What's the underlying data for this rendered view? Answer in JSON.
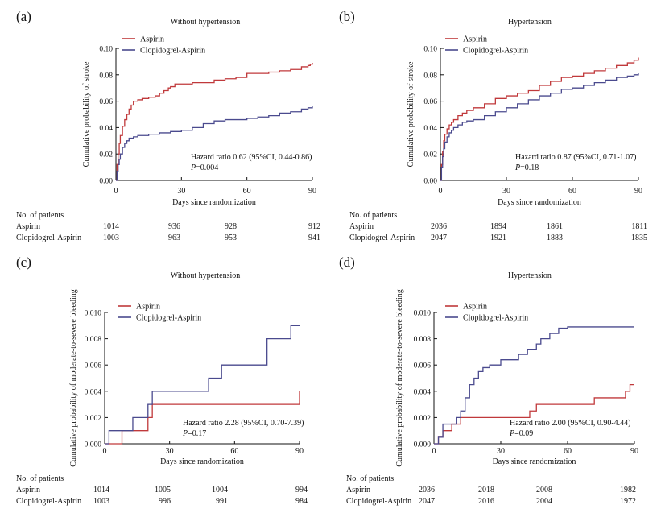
{
  "chart_data": [
    {
      "type": "line",
      "panel_label": "(a)",
      "title": "Without hypertension",
      "xlabel": "Days since randomization",
      "ylabel": "Cumulative probability of stroke",
      "xlim": [
        0,
        90
      ],
      "ylim": [
        0,
        0.1
      ],
      "x_ticks": [
        "0",
        "30",
        "60",
        "90"
      ],
      "y_ticks": [
        "0.00",
        "0.02",
        "0.04",
        "0.06",
        "0.08",
        "0.10"
      ],
      "legend": [
        "Aspirin",
        "Clopidogrel-Aspirin"
      ],
      "annotation": {
        "hr": "Hazard ratio 0.62 (95%CI, 0.44-0.86)",
        "p_italic": "P",
        "p_rest": "=0.004"
      },
      "series": [
        {
          "name": "Aspirin",
          "color": "#c0393b",
          "x": [
            0,
            0.5,
            1,
            1.5,
            2,
            3,
            4,
            5,
            6,
            7,
            8,
            10,
            12,
            15,
            18,
            20,
            22,
            24,
            25,
            27,
            30,
            35,
            40,
            45,
            50,
            55,
            60,
            65,
            70,
            75,
            80,
            85,
            88,
            89,
            90
          ],
          "y": [
            0,
            0.012,
            0.02,
            0.028,
            0.034,
            0.041,
            0.046,
            0.05,
            0.054,
            0.057,
            0.06,
            0.061,
            0.062,
            0.063,
            0.064,
            0.066,
            0.068,
            0.07,
            0.071,
            0.073,
            0.073,
            0.074,
            0.074,
            0.076,
            0.077,
            0.078,
            0.081,
            0.081,
            0.082,
            0.083,
            0.084,
            0.086,
            0.087,
            0.088,
            0.089
          ]
        },
        {
          "name": "Clopidogrel-Aspirin",
          "color": "#4a4a8e",
          "x": [
            0,
            0.5,
            1,
            1.5,
            2,
            3,
            4,
            5,
            6,
            8,
            10,
            15,
            20,
            25,
            30,
            35,
            40,
            45,
            50,
            55,
            60,
            65,
            70,
            75,
            80,
            85,
            88,
            90
          ],
          "y": [
            0,
            0.007,
            0.012,
            0.016,
            0.02,
            0.025,
            0.028,
            0.03,
            0.032,
            0.033,
            0.034,
            0.035,
            0.036,
            0.037,
            0.038,
            0.04,
            0.043,
            0.045,
            0.046,
            0.046,
            0.047,
            0.048,
            0.049,
            0.051,
            0.052,
            0.054,
            0.055,
            0.056
          ]
        }
      ],
      "at_risk": {
        "title": "No. of patients",
        "rows": [
          {
            "label": "Aspirin",
            "values": [
              "1014",
              "936",
              "928",
              "912"
            ]
          },
          {
            "label": "Clopidogrel-Aspirin",
            "values": [
              "1003",
              "963",
              "953",
              "941"
            ]
          }
        ]
      }
    },
    {
      "type": "line",
      "panel_label": "(b)",
      "title": "Hypertension",
      "xlabel": "Days since randomization",
      "ylabel": "Cumulative probability of stroke",
      "xlim": [
        0,
        90
      ],
      "ylim": [
        0,
        0.1
      ],
      "x_ticks": [
        "0",
        "30",
        "60",
        "90"
      ],
      "y_ticks": [
        "0.00",
        "0.02",
        "0.04",
        "0.06",
        "0.08",
        "0.10"
      ],
      "legend": [
        "Aspirin",
        "Clopidogrel-Aspirin"
      ],
      "annotation": {
        "hr": "Hazard ratio 0.87 (95%CI, 0.71-1.07)",
        "p_italic": "P",
        "p_rest": "=0.18"
      },
      "series": [
        {
          "name": "Aspirin",
          "color": "#c0393b",
          "x": [
            0,
            0.5,
            1,
            1.5,
            2,
            3,
            4,
            5,
            6,
            8,
            10,
            12,
            15,
            20,
            25,
            30,
            35,
            40,
            45,
            50,
            55,
            60,
            65,
            70,
            75,
            80,
            85,
            88,
            90
          ],
          "y": [
            0,
            0.012,
            0.022,
            0.03,
            0.035,
            0.039,
            0.042,
            0.044,
            0.046,
            0.049,
            0.051,
            0.053,
            0.055,
            0.058,
            0.062,
            0.064,
            0.066,
            0.068,
            0.072,
            0.075,
            0.078,
            0.079,
            0.081,
            0.083,
            0.085,
            0.087,
            0.089,
            0.091,
            0.093
          ]
        },
        {
          "name": "Clopidogrel-Aspirin",
          "color": "#4a4a8e",
          "x": [
            0,
            0.5,
            1,
            1.5,
            2,
            3,
            4,
            5,
            6,
            8,
            10,
            12,
            15,
            20,
            25,
            30,
            35,
            40,
            45,
            50,
            55,
            60,
            65,
            70,
            75,
            80,
            85,
            88,
            90
          ],
          "y": [
            0,
            0.01,
            0.018,
            0.024,
            0.029,
            0.033,
            0.036,
            0.038,
            0.04,
            0.042,
            0.044,
            0.045,
            0.046,
            0.049,
            0.052,
            0.055,
            0.058,
            0.061,
            0.064,
            0.066,
            0.069,
            0.07,
            0.072,
            0.074,
            0.076,
            0.078,
            0.079,
            0.08,
            0.081
          ]
        }
      ],
      "at_risk": {
        "title": "No. of patients",
        "rows": [
          {
            "label": "Aspirin",
            "values": [
              "2036",
              "1894",
              "1861",
              "1811"
            ]
          },
          {
            "label": "Clopidogrel-Aspirin",
            "values": [
              "2047",
              "1921",
              "1883",
              "1835"
            ]
          }
        ]
      }
    },
    {
      "type": "line",
      "panel_label": "(c)",
      "title": "Without hypertension",
      "xlabel": "Days since randomization",
      "ylabel": "Cumulative probability of moderate-to-severe bleeding",
      "xlim": [
        0,
        90
      ],
      "ylim": [
        0,
        0.01
      ],
      "x_ticks": [
        "0",
        "30",
        "60",
        "90"
      ],
      "y_ticks": [
        "0.000",
        "0.002",
        "0.004",
        "0.006",
        "0.008",
        "0.010"
      ],
      "legend": [
        "Aspirin",
        "Clopidogrel-Aspirin"
      ],
      "annotation": {
        "hr": "Hazard ratio 2.28 (95%CI, 0.70-7.39)",
        "p_italic": "P",
        "p_rest": "=0.17"
      },
      "series": [
        {
          "name": "Aspirin",
          "color": "#c0393b",
          "x": [
            0,
            8,
            15,
            20,
            22,
            89,
            90
          ],
          "y": [
            0,
            0.001,
            0.001,
            0.002,
            0.003,
            0.003,
            0.004
          ]
        },
        {
          "name": "Clopidogrel-Aspirin",
          "color": "#4a4a8e",
          "x": [
            0,
            2,
            13,
            18,
            20,
            22,
            48,
            54,
            75,
            86,
            90
          ],
          "y": [
            0,
            0.001,
            0.002,
            0.002,
            0.003,
            0.004,
            0.005,
            0.006,
            0.008,
            0.009,
            0.009
          ]
        }
      ],
      "at_risk": {
        "title": "No. of patients",
        "rows": [
          {
            "label": "Aspirin",
            "values": [
              "1014",
              "1005",
              "1004",
              "994"
            ]
          },
          {
            "label": "Clopidogrel-Aspirin",
            "values": [
              "1003",
              "996",
              "991",
              "984"
            ]
          }
        ]
      }
    },
    {
      "type": "line",
      "panel_label": "(d)",
      "title": "Hypertension",
      "xlabel": "Days since randomization",
      "ylabel": "Cumulative probability of moderate-to-severe bleeding",
      "xlim": [
        0,
        90
      ],
      "ylim": [
        0,
        0.01
      ],
      "x_ticks": [
        "0",
        "30",
        "60",
        "90"
      ],
      "y_ticks": [
        "0.000",
        "0.002",
        "0.004",
        "0.006",
        "0.008",
        "0.010"
      ],
      "legend": [
        "Aspirin",
        "Clopidogrel-Aspirin"
      ],
      "annotation": {
        "hr": "Hazard ratio 2.00 (95%CI, 0.90-4.44)",
        "p_italic": "P",
        "p_rest": "=0.09"
      },
      "series": [
        {
          "name": "Aspirin",
          "color": "#c0393b",
          "x": [
            0,
            2,
            4,
            8,
            12,
            19,
            40,
            43,
            46,
            72,
            86,
            88,
            90
          ],
          "y": [
            0,
            0.0005,
            0.001,
            0.0015,
            0.002,
            0.002,
            0.002,
            0.0025,
            0.003,
            0.0035,
            0.004,
            0.0045,
            0.0045
          ]
        },
        {
          "name": "Clopidogrel-Aspirin",
          "color": "#4a4a8e",
          "x": [
            0,
            2,
            4,
            8,
            10,
            12,
            14,
            16,
            18,
            20,
            22,
            25,
            30,
            38,
            42,
            46,
            48,
            52,
            56,
            60,
            90
          ],
          "y": [
            0,
            0.0005,
            0.0015,
            0.0015,
            0.002,
            0.0025,
            0.0035,
            0.0045,
            0.005,
            0.0055,
            0.0058,
            0.006,
            0.0064,
            0.0068,
            0.0072,
            0.0076,
            0.008,
            0.0084,
            0.0088,
            0.0089,
            0.0089
          ]
        }
      ],
      "at_risk": {
        "title": "No. of patients",
        "rows": [
          {
            "label": "Aspirin",
            "values": [
              "2036",
              "2018",
              "2008",
              "1982"
            ]
          },
          {
            "label": "Clopidogrel-Aspirin",
            "values": [
              "2047",
              "2016",
              "2004",
              "1972"
            ]
          }
        ]
      }
    }
  ]
}
